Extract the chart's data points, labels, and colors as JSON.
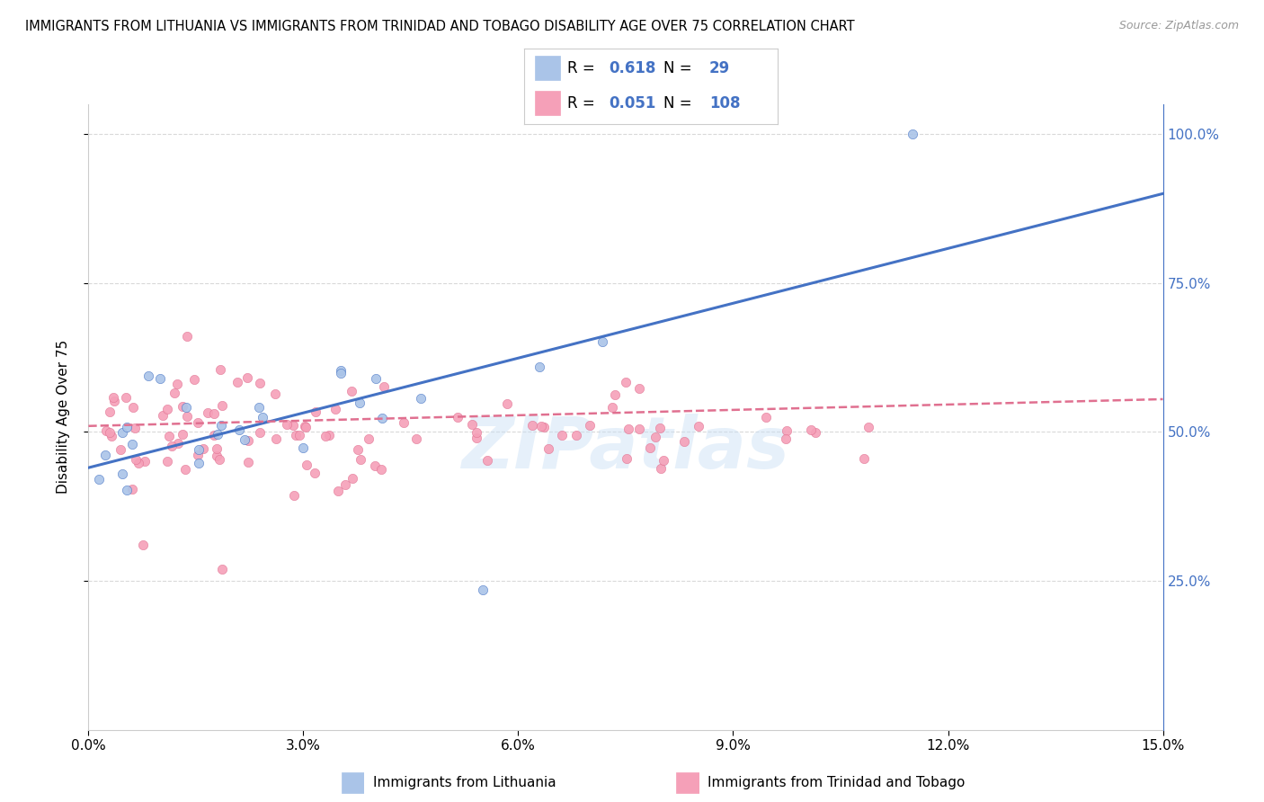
{
  "title": "IMMIGRANTS FROM LITHUANIA VS IMMIGRANTS FROM TRINIDAD AND TOBAGO DISABILITY AGE OVER 75 CORRELATION CHART",
  "source": "Source: ZipAtlas.com",
  "ylabel": "Disability Age Over 75",
  "color_blue": "#aac4e8",
  "color_pink": "#f5a0b8",
  "line_blue": "#4472c4",
  "line_pink": "#e07090",
  "watermark": "ZIPatlas",
  "xlim": [
    0.0,
    0.15
  ],
  "ylim": [
    0.0,
    1.05
  ],
  "legend_r1": "R = 0.618",
  "legend_n1": "N =  29",
  "legend_r2": "R = 0.051",
  "legend_n2": "N = 108"
}
